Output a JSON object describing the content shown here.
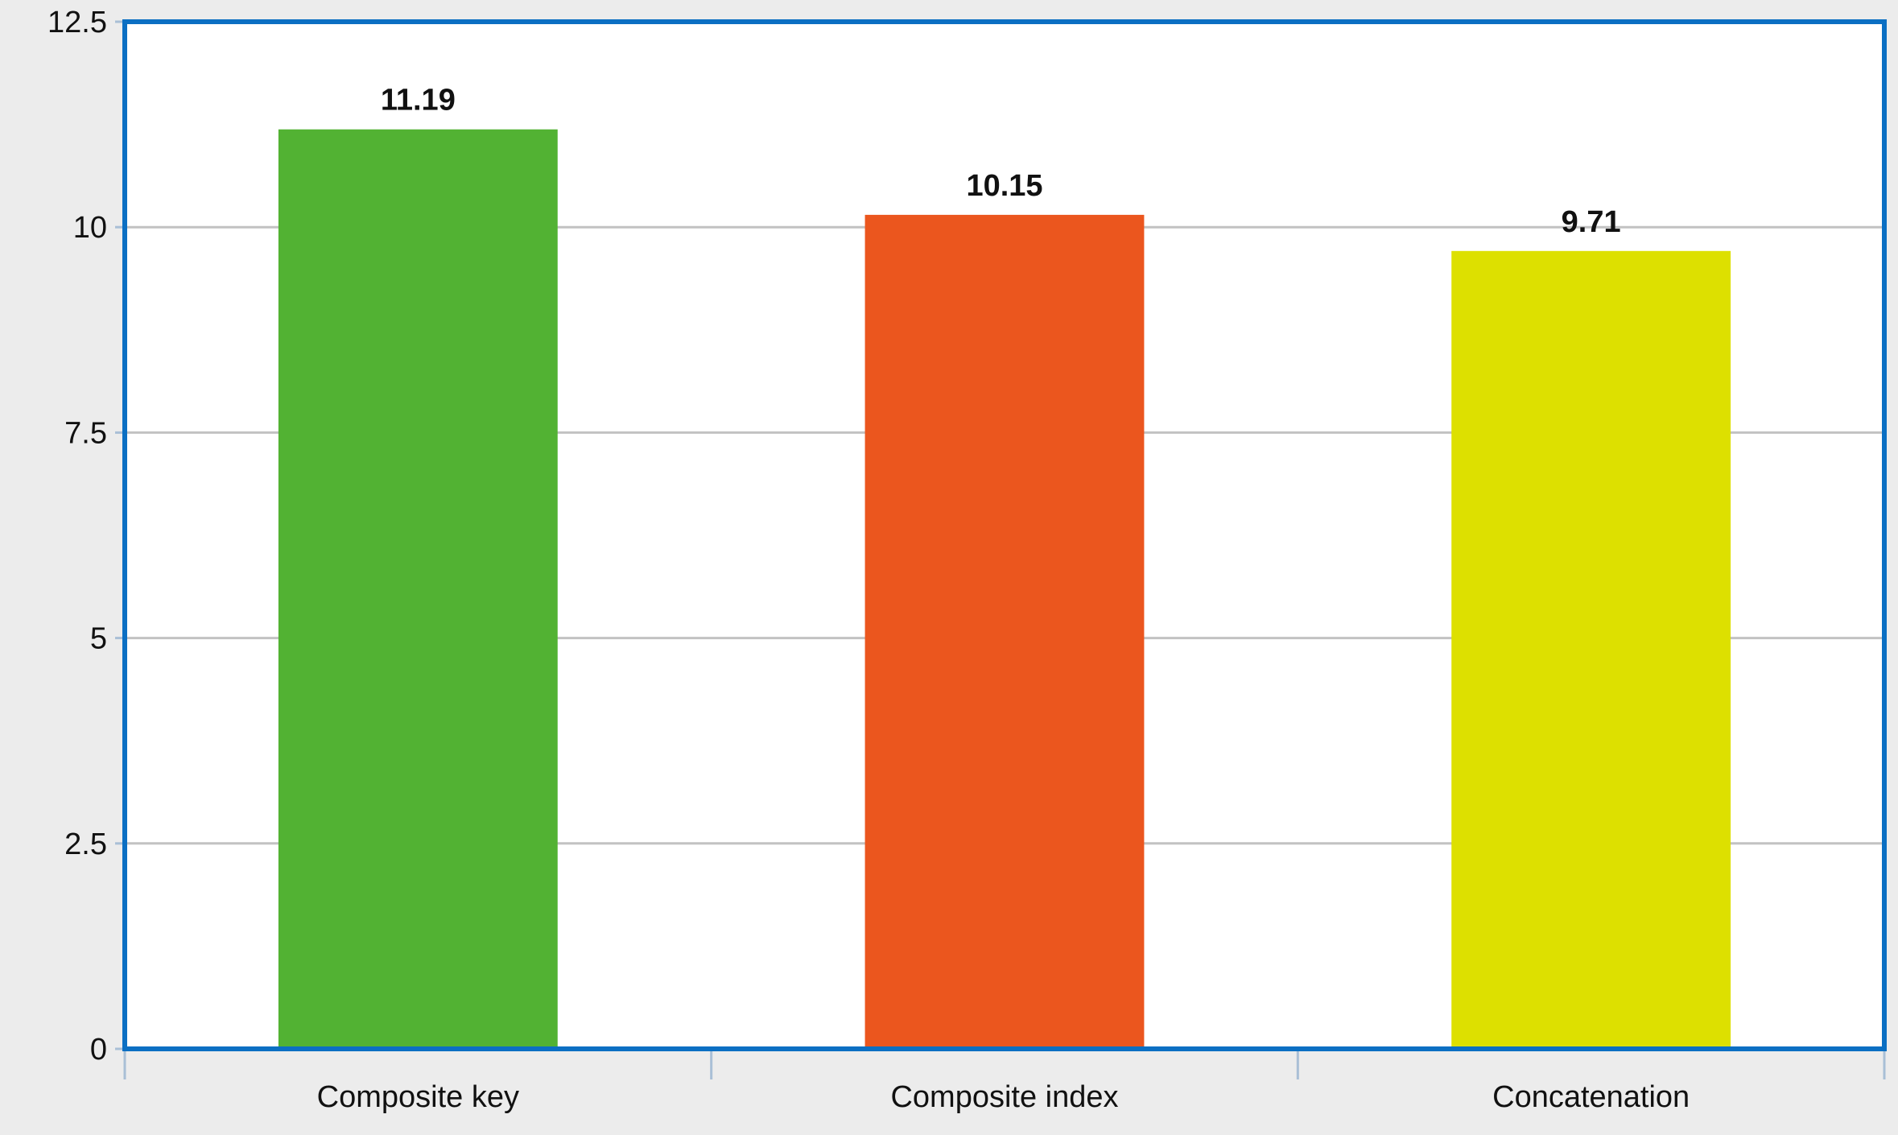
{
  "chart_data": {
    "type": "bar",
    "title": "",
    "xlabel": "",
    "ylabel": "",
    "categories": [
      "Composite key",
      "Composite index",
      "Concatenation"
    ],
    "values": [
      11.19,
      10.15,
      9.71
    ],
    "data_labels": [
      "11.19",
      "10.15",
      "9.71"
    ],
    "ylim": [
      0,
      12.5
    ],
    "yticks": [
      0,
      2.5,
      5,
      7.5,
      10,
      12.5
    ],
    "ytick_labels": [
      "0",
      "2.5",
      "5",
      "7.5",
      "10",
      "12.5"
    ],
    "grid": true,
    "legend": "none",
    "colors": [
      "#52b233",
      "#eb561e",
      "#dde000"
    ],
    "frame_color": "#0b6fc3",
    "grid_color": "#c2c2c2",
    "background_color": "#ececec",
    "plot_background_color": "#ffffff"
  }
}
